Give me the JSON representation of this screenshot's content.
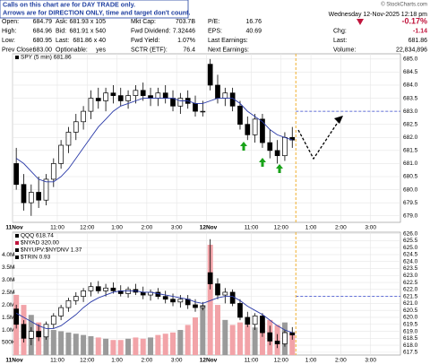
{
  "notice": [
    "Calls on this chart are for DAY TRADE only.",
    "Arrows are for DIRECTION ONLY, time and target don't count."
  ],
  "header": {
    "copyright": "© StockCharts.com",
    "date": "Wednesday 12-Nov-2025 12:18 pm",
    "stats": [
      [
        {
          "label": "Open:",
          "value": "684.79"
        },
        {
          "label": "High:",
          "value": "684.96"
        },
        {
          "label": "Low:",
          "value": "680.95"
        },
        {
          "label": "Prev Close:",
          "value": "683.00"
        }
      ],
      [
        {
          "label": "Ask:",
          "value": "681.93 x 105"
        },
        {
          "label": "Bid:",
          "value": "681.91 x 540"
        },
        {
          "label": "Last:",
          "value": "681.86 x 40"
        },
        {
          "label": "Optionable:",
          "value": "yes"
        }
      ],
      [
        {
          "label": "Mkt Cap:",
          "value": "703.7B"
        },
        {
          "label": "Fwd Dividend:",
          "value": "7.32446"
        },
        {
          "label": "Fwd Yield:",
          "value": "1.07%"
        },
        {
          "label": "SCTR (ETF):",
          "value": "76.4"
        }
      ],
      [
        {
          "label": "P/E:",
          "value": "16.76"
        },
        {
          "label": "EPS:",
          "value": "40.69"
        },
        {
          "label": "Last Earnings:",
          "value": ""
        },
        {
          "label": "Next Earnings:",
          "value": ""
        }
      ]
    ],
    "right": [
      {
        "label": "",
        "value": "-0.17%"
      },
      {
        "label": "Chg:",
        "value": "-1.14"
      },
      {
        "label": "Last:",
        "value": "681.86"
      },
      {
        "label": "Volume:",
        "value": "22,834,896"
      }
    ]
  },
  "chart_data": [
    {
      "type": "candlestick",
      "legend": [
        "SPY (5 min) 681.86"
      ],
      "xlim": [
        0,
        52
      ],
      "xticks": [
        {
          "value": 0,
          "label": "11Nov"
        },
        {
          "value": 6,
          "label": "11:00"
        },
        {
          "value": 10,
          "label": "12:00"
        },
        {
          "value": 14,
          "label": "1:00"
        },
        {
          "value": 18,
          "label": "2:00"
        },
        {
          "value": 22,
          "label": "3:00"
        },
        {
          "value": 26,
          "label": "12Nov"
        },
        {
          "value": 32,
          "label": "11:00"
        },
        {
          "value": 36,
          "label": "12:00"
        },
        {
          "value": 40,
          "label": "1:00"
        },
        {
          "value": 44,
          "label": "2:00"
        },
        {
          "value": 48,
          "label": "3:00"
        }
      ],
      "ylim": [
        678.75,
        685.2
      ],
      "yticks": [
        {
          "value": 679,
          "label": "679.0"
        },
        679.5,
        {
          "value": 680,
          "label": "680.0"
        },
        680.5,
        {
          "value": 681,
          "label": "681.0"
        },
        681.5,
        {
          "value": 682,
          "label": "682.0"
        },
        682.5,
        {
          "value": 683,
          "label": "683.0"
        },
        683.5,
        {
          "value": 684,
          "label": "684.0"
        },
        684.5,
        {
          "value": 685,
          "label": "685.0"
        }
      ],
      "grid": true,
      "candle_color": "#000000",
      "ma_color": "#2a3aa8",
      "hline": 683.0,
      "hline_color": "#3344cc",
      "open": [
        681.0,
        680.2,
        679.5,
        679.9,
        679.6,
        680.4,
        681.0,
        681.7,
        682.2,
        682.6,
        683.0,
        683.5,
        683.4,
        683.7,
        683.6,
        683.4,
        683.6,
        683.8,
        683.6,
        683.5,
        683.7,
        683.5,
        683.2,
        683.5,
        683.3,
        683.0,
        684.8,
        684.0,
        683.5,
        683.7,
        683.2,
        682.5,
        682.1,
        682.7,
        681.8,
        681.5,
        681.3,
        682.0
      ],
      "high": [
        681.6,
        680.6,
        680.2,
        680.5,
        680.6,
        681.2,
        681.9,
        682.4,
        682.9,
        683.2,
        683.8,
        683.9,
        683.9,
        684.0,
        683.9,
        683.8,
        684.0,
        684.1,
        683.9,
        683.9,
        684.0,
        683.8,
        683.7,
        683.8,
        683.6,
        683.4,
        685.0,
        684.4,
        683.9,
        683.9,
        683.4,
        682.8,
        682.9,
        682.9,
        682.3,
        681.9,
        682.2,
        682.4
      ],
      "low": [
        680.0,
        679.2,
        679.0,
        679.3,
        679.4,
        680.1,
        680.8,
        681.4,
        681.9,
        682.3,
        682.7,
        683.1,
        683.0,
        683.3,
        683.2,
        683.1,
        683.3,
        683.4,
        683.2,
        683.2,
        683.3,
        683.0,
        682.9,
        683.1,
        682.8,
        682.8,
        683.8,
        683.3,
        683.2,
        683.0,
        682.3,
        681.9,
        681.8,
        681.6,
        681.2,
        681.0,
        681.1,
        681.6
      ],
      "close": [
        680.2,
        679.5,
        679.9,
        679.6,
        680.4,
        681.0,
        681.7,
        682.2,
        682.6,
        683.0,
        683.5,
        683.4,
        683.7,
        683.6,
        683.4,
        683.6,
        683.8,
        683.6,
        683.5,
        683.7,
        683.5,
        683.2,
        683.5,
        683.3,
        683.0,
        683.0,
        684.0,
        683.5,
        683.7,
        683.2,
        682.5,
        682.1,
        682.7,
        681.8,
        681.5,
        681.3,
        682.0,
        681.9
      ],
      "ma": [
        681.2,
        681.0,
        680.7,
        680.4,
        680.3,
        680.3,
        680.5,
        680.8,
        681.2,
        681.6,
        682.0,
        682.4,
        682.7,
        683.0,
        683.2,
        683.3,
        683.4,
        683.5,
        683.5,
        683.5,
        683.5,
        683.5,
        683.4,
        683.4,
        683.3,
        683.3,
        683.4,
        683.5,
        683.5,
        683.5,
        683.3,
        683.0,
        682.8,
        682.6,
        682.3,
        682.1,
        682.0,
        681.9
      ]
    },
    {
      "type": "candlestick",
      "legend": [
        "QQQ 618.74",
        "$NYAD 320.00",
        "$NYUPV:$NYDNV 1.37",
        "$TRIN 0.93"
      ],
      "xlim": [
        0,
        52
      ],
      "xticks": [
        {
          "value": 0,
          "label": "11Nov"
        },
        {
          "value": 6,
          "label": "11:00"
        },
        {
          "value": 10,
          "label": "12:00"
        },
        {
          "value": 14,
          "label": "1:00"
        },
        {
          "value": 18,
          "label": "2:00"
        },
        {
          "value": 22,
          "label": "3:00"
        },
        {
          "value": 26,
          "label": "12Nov"
        },
        {
          "value": 32,
          "label": "11:00"
        },
        {
          "value": 36,
          "label": "12:00"
        },
        {
          "value": 40,
          "label": "1:00"
        },
        {
          "value": 44,
          "label": "2:00"
        },
        {
          "value": 48,
          "label": "3:00"
        }
      ],
      "ylim": [
        617.3,
        626.1
      ],
      "yticks": [
        617.5,
        {
          "value": 618,
          "label": "618.0"
        },
        618.5,
        {
          "value": 619,
          "label": "619.0"
        },
        619.5,
        {
          "value": 620,
          "label": "620.0"
        },
        620.5,
        {
          "value": 621,
          "label": "621.0"
        },
        621.5,
        {
          "value": 622,
          "label": "622.0"
        },
        622.5,
        {
          "value": 623,
          "label": "623.0"
        },
        623.5,
        {
          "value": 624,
          "label": "624.0"
        },
        624.5,
        {
          "value": 625,
          "label": "625.0"
        },
        625.5,
        {
          "value": 626,
          "label": "626.0"
        }
      ],
      "vlim": [
        0,
        4900000
      ],
      "vticks": [
        {
          "value": 500000,
          "label": "500K"
        },
        {
          "value": 1000000,
          "label": "1.0M"
        },
        {
          "value": 1500000,
          "label": "1.5M"
        },
        {
          "value": 2000000,
          "label": "2.0M"
        },
        {
          "value": 2500000,
          "label": "2.5M"
        },
        {
          "value": 3000000,
          "label": "3.0M"
        },
        {
          "value": 3500000,
          "label": "3.5M"
        },
        {
          "value": 4000000,
          "label": "4.0M"
        }
      ],
      "grid": true,
      "candle_color": "#000000",
      "ma_color": "#2a3aa8",
      "hline": 621.5,
      "hline_color": "#3344cc",
      "volume_up_color": "#9a9a9a",
      "volume_down_color": "#f2a3a8",
      "open": [
        620.6,
        619.5,
        618.5,
        619.0,
        618.6,
        619.5,
        620.1,
        620.7,
        621.2,
        621.5,
        621.9,
        622.2,
        621.9,
        622.1,
        621.9,
        621.7,
        622.0,
        621.8,
        621.6,
        621.8,
        621.5,
        621.3,
        621.1,
        621.3,
        620.9,
        620.7,
        623.2,
        622.4,
        621.6,
        621.8,
        621.0,
        620.0,
        619.5,
        620.1,
        618.9,
        618.3,
        618.1,
        618.9
      ],
      "high": [
        620.9,
        619.8,
        619.3,
        619.5,
        619.7,
        620.3,
        620.9,
        621.4,
        621.8,
        622.1,
        622.5,
        622.6,
        622.4,
        622.5,
        622.3,
        622.2,
        622.4,
        622.2,
        622.0,
        622.1,
        621.9,
        621.7,
        621.6,
        621.6,
        621.3,
        621.1,
        625.6,
        622.8,
        622.1,
        622.0,
        621.3,
        620.4,
        620.3,
        620.3,
        619.4,
        618.8,
        619.1,
        619.3
      ],
      "low": [
        619.2,
        618.2,
        618.0,
        618.3,
        618.4,
        619.2,
        619.8,
        620.4,
        620.9,
        621.1,
        621.5,
        621.7,
        621.5,
        621.7,
        621.5,
        621.4,
        621.6,
        621.3,
        621.2,
        621.3,
        621.0,
        620.8,
        620.7,
        620.6,
        620.4,
        620.5,
        622.0,
        621.3,
        621.0,
        620.8,
        619.8,
        619.3,
        619.1,
        618.6,
        618.0,
        617.8,
        617.9,
        618.4
      ],
      "close": [
        619.5,
        618.5,
        619.0,
        618.6,
        619.5,
        620.1,
        620.7,
        621.2,
        621.5,
        621.9,
        622.2,
        621.9,
        622.1,
        621.9,
        621.7,
        622.0,
        621.8,
        621.6,
        621.8,
        621.5,
        621.3,
        621.1,
        621.3,
        620.9,
        620.7,
        620.8,
        622.4,
        621.6,
        621.8,
        621.0,
        620.0,
        619.5,
        620.1,
        618.9,
        618.3,
        618.1,
        618.9,
        618.74
      ],
      "ma": [
        620.3,
        620.0,
        619.7,
        619.4,
        619.2,
        619.2,
        619.4,
        619.8,
        620.2,
        620.7,
        621.1,
        621.4,
        621.6,
        621.8,
        621.9,
        621.9,
        621.9,
        621.8,
        621.8,
        621.7,
        621.6,
        621.5,
        621.4,
        621.3,
        621.1,
        621.0,
        621.2,
        621.4,
        621.5,
        621.5,
        621.2,
        620.8,
        620.5,
        620.2,
        619.8,
        619.4,
        619.1,
        618.9
      ],
      "volume": [
        2400000,
        2000000,
        1600000,
        1300000,
        1100000,
        1000000,
        950000,
        900000,
        850000,
        800000,
        750000,
        700000,
        650000,
        600000,
        600000,
        650000,
        700000,
        650000,
        700000,
        800000,
        850000,
        900000,
        1000000,
        1200000,
        1500000,
        2000000,
        4400000,
        2000000,
        1400000,
        1200000,
        1300000,
        1200000,
        1100000,
        1300000,
        1400000,
        1200000,
        1300000,
        900000
      ]
    }
  ]
}
